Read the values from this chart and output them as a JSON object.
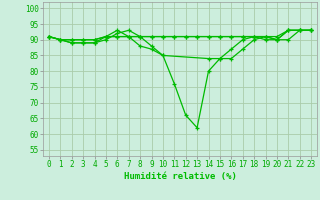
{
  "lines": [
    {
      "x": [
        0,
        1,
        2,
        3,
        4,
        5,
        6,
        7,
        8,
        9,
        10,
        11,
        12,
        13,
        14,
        15,
        16,
        17,
        18,
        19,
        20,
        21,
        22,
        23
      ],
      "y": [
        91,
        90,
        89,
        89,
        89,
        91,
        93,
        91,
        88,
        87,
        85,
        76,
        66,
        62,
        80,
        84,
        84,
        87,
        90,
        91,
        90,
        93,
        93,
        93
      ]
    },
    {
      "x": [
        0,
        1,
        2,
        3,
        4,
        5,
        6,
        7,
        8,
        9,
        10,
        14,
        15,
        16,
        17,
        18,
        19,
        20,
        21,
        22,
        23
      ],
      "y": [
        91,
        90,
        89,
        89,
        89,
        90,
        92,
        93,
        91,
        88,
        85,
        84,
        84,
        87,
        90,
        91,
        90,
        90,
        93,
        93,
        93
      ]
    },
    {
      "x": [
        0,
        1,
        2,
        3,
        4,
        5,
        6,
        7,
        8,
        9,
        10,
        11,
        12,
        13,
        14,
        15,
        16,
        17,
        18,
        19,
        20,
        21,
        22,
        23
      ],
      "y": [
        91,
        90,
        90,
        90,
        90,
        91,
        91,
        91,
        91,
        91,
        91,
        91,
        91,
        91,
        91,
        91,
        91,
        91,
        91,
        91,
        91,
        93,
        93,
        93
      ]
    },
    {
      "x": [
        0,
        1,
        2,
        3,
        4,
        5,
        6,
        7,
        8,
        9,
        10,
        11,
        12,
        13,
        14,
        15,
        16,
        17,
        18,
        19,
        20,
        21,
        22,
        23
      ],
      "y": [
        91,
        90,
        90,
        90,
        90,
        91,
        91,
        91,
        91,
        91,
        91,
        91,
        91,
        91,
        91,
        91,
        91,
        91,
        91,
        91,
        90,
        90,
        93,
        93
      ]
    }
  ],
  "line_color": "#00bb00",
  "bg_color": "#cceedd",
  "grid_color": "#aaccaa",
  "xlabel": "Humidité relative (%)",
  "ytick_labels": [
    "55",
    "60",
    "65",
    "70",
    "75",
    "80",
    "85",
    "90",
    "95",
    "100"
  ],
  "ytick_vals": [
    55,
    60,
    65,
    70,
    75,
    80,
    85,
    90,
    95,
    100
  ],
  "xlim": [
    -0.5,
    23.5
  ],
  "ylim": [
    53,
    102
  ],
  "tick_color": "#00aa00",
  "xlabel_color": "#00bb00",
  "tick_fontsize": 5.5,
  "xlabel_fontsize": 6.5
}
